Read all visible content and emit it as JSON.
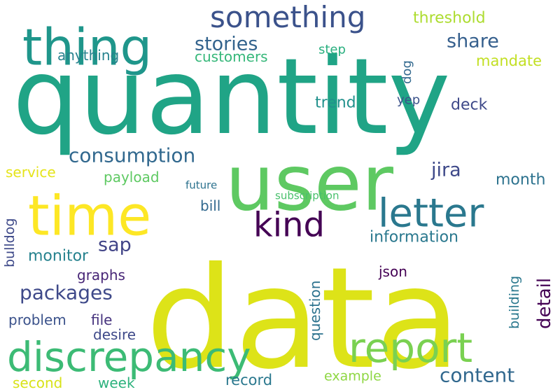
{
  "words": [
    {
      "text": "quantity",
      "weight": 1.0,
      "color": "#20a486",
      "vertical": false
    },
    {
      "text": "data",
      "weight": 1.0,
      "color": "#dde318",
      "vertical": false
    },
    {
      "text": "user",
      "weight": 0.85,
      "color": "#5ec962",
      "vertical": false
    },
    {
      "text": "time",
      "weight": 0.65,
      "color": "#fde725",
      "vertical": false
    },
    {
      "text": "thing",
      "weight": 0.6,
      "color": "#1f968b",
      "vertical": false
    },
    {
      "text": "discrepancy",
      "weight": 0.55,
      "color": "#3cbb75",
      "vertical": false
    },
    {
      "text": "report",
      "weight": 0.5,
      "color": "#7ad151",
      "vertical": false
    },
    {
      "text": "letter",
      "weight": 0.45,
      "color": "#2a788e",
      "vertical": false
    },
    {
      "text": "kind",
      "weight": 0.4,
      "color": "#440154",
      "vertical": false
    },
    {
      "text": "something",
      "weight": 0.38,
      "color": "#3b528b",
      "vertical": false
    },
    {
      "text": "stories",
      "weight": 0.2,
      "color": "#33638d",
      "vertical": false
    },
    {
      "text": "share",
      "weight": 0.2,
      "color": "#355f8d",
      "vertical": false
    },
    {
      "text": "consumption",
      "weight": 0.22,
      "color": "#31688e",
      "vertical": false
    },
    {
      "text": "packages",
      "weight": 0.22,
      "color": "#3e4989",
      "vertical": false
    },
    {
      "text": "content",
      "weight": 0.2,
      "color": "#31688e",
      "vertical": false
    },
    {
      "text": "jira",
      "weight": 0.2,
      "color": "#3e4989",
      "vertical": false
    },
    {
      "text": "sap",
      "weight": 0.2,
      "color": "#414487",
      "vertical": false
    },
    {
      "text": "detail",
      "weight": 0.18,
      "color": "#440154",
      "vertical": true
    },
    {
      "text": "threshold",
      "weight": 0.12,
      "color": "#addc30",
      "vertical": false
    },
    {
      "text": "anything",
      "weight": 0.12,
      "color": "#26828e",
      "vertical": false
    },
    {
      "text": "customers",
      "weight": 0.12,
      "color": "#35b779",
      "vertical": false
    },
    {
      "text": "step",
      "weight": 0.1,
      "color": "#29af7f",
      "vertical": false
    },
    {
      "text": "mandate",
      "weight": 0.12,
      "color": "#c2df23",
      "vertical": false
    },
    {
      "text": "dog",
      "weight": 0.1,
      "color": "#31688e",
      "vertical": true
    },
    {
      "text": "trend",
      "weight": 0.12,
      "color": "#21918c",
      "vertical": false
    },
    {
      "text": "yep",
      "weight": 0.1,
      "color": "#3b528b",
      "vertical": false
    },
    {
      "text": "deck",
      "weight": 0.13,
      "color": "#3e4989",
      "vertical": false
    },
    {
      "text": "service",
      "weight": 0.12,
      "color": "#e5e419",
      "vertical": false
    },
    {
      "text": "payload",
      "weight": 0.12,
      "color": "#5ec962",
      "vertical": false
    },
    {
      "text": "month",
      "weight": 0.12,
      "color": "#2c728e",
      "vertical": false
    },
    {
      "text": "future",
      "weight": 0.08,
      "color": "#2c728e",
      "vertical": false
    },
    {
      "text": "subscription",
      "weight": 0.08,
      "color": "#4ac16d",
      "vertical": false
    },
    {
      "text": "bill",
      "weight": 0.12,
      "color": "#31688e",
      "vertical": false
    },
    {
      "text": "bulldog",
      "weight": 0.1,
      "color": "#3e4989",
      "vertical": true
    },
    {
      "text": "information",
      "weight": 0.13,
      "color": "#2a788e",
      "vertical": false
    },
    {
      "text": "monitor",
      "weight": 0.12,
      "color": "#26828e",
      "vertical": false
    },
    {
      "text": "building",
      "weight": 0.1,
      "color": "#2a788e",
      "vertical": true
    },
    {
      "text": "question",
      "weight": 0.1,
      "color": "#2c728e",
      "vertical": true
    },
    {
      "text": "json",
      "weight": 0.12,
      "color": "#440154",
      "vertical": false
    },
    {
      "text": "graphs",
      "weight": 0.12,
      "color": "#482677",
      "vertical": false
    },
    {
      "text": "problem",
      "weight": 0.12,
      "color": "#3b528b",
      "vertical": false
    },
    {
      "text": "file",
      "weight": 0.12,
      "color": "#46337e",
      "vertical": false
    },
    {
      "text": "desire",
      "weight": 0.12,
      "color": "#3e4989",
      "vertical": false
    },
    {
      "text": "example",
      "weight": 0.1,
      "color": "#8fd744",
      "vertical": false
    },
    {
      "text": "second",
      "weight": 0.12,
      "color": "#d8e219",
      "vertical": false
    },
    {
      "text": "week",
      "weight": 0.12,
      "color": "#2db27d",
      "vertical": false
    },
    {
      "text": "record",
      "weight": 0.12,
      "color": "#2a788e",
      "vertical": false
    }
  ]
}
